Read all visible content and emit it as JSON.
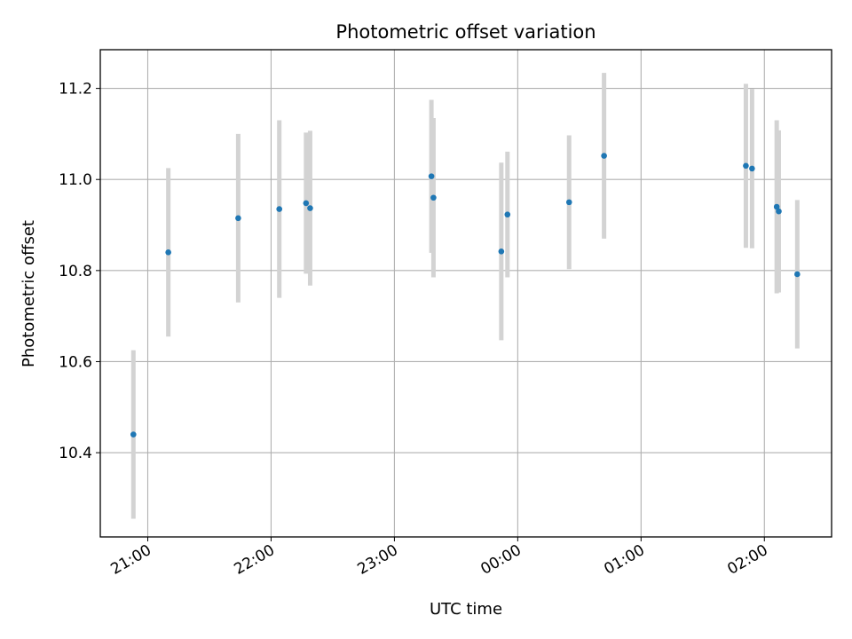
{
  "chart_data": {
    "type": "scatter",
    "title": "Photometric offset variation",
    "xlabel": "UTC time",
    "ylabel": "Photometric offset",
    "x_ticks": [
      "21:00",
      "22:00",
      "23:00",
      "00:00",
      "01:00",
      "02:00"
    ],
    "y_ticks": [
      "10.4",
      "10.6",
      "10.8",
      "11.0",
      "11.2"
    ],
    "xlim_hours": [
      20.615,
      26.545
    ],
    "ylim": [
      10.215,
      11.285
    ],
    "grid": true,
    "errorbar_color": "#d3d3d3",
    "marker_color": "#1f77b4",
    "points": [
      {
        "time": "20:53",
        "y": 10.44,
        "err": 0.185
      },
      {
        "time": "21:10",
        "y": 10.84,
        "err": 0.185
      },
      {
        "time": "21:44",
        "y": 10.915,
        "err": 0.185
      },
      {
        "time": "22:04",
        "y": 10.935,
        "err": 0.195
      },
      {
        "time": "22:17",
        "y": 10.948,
        "err": 0.155
      },
      {
        "time": "22:19",
        "y": 10.937,
        "err": 0.17
      },
      {
        "time": "23:18",
        "y": 11.007,
        "err": 0.168
      },
      {
        "time": "23:19",
        "y": 10.96,
        "err": 0.175
      },
      {
        "time": "23:52",
        "y": 10.842,
        "err": 0.195
      },
      {
        "time": "23:55",
        "y": 10.923,
        "err": 0.138
      },
      {
        "time": "00:25",
        "y": 10.95,
        "err": 0.147
      },
      {
        "time": "00:42",
        "y": 11.052,
        "err": 0.182
      },
      {
        "time": "01:51",
        "y": 11.03,
        "err": 0.18
      },
      {
        "time": "01:54",
        "y": 11.024,
        "err": 0.175
      },
      {
        "time": "02:06",
        "y": 10.94,
        "err": 0.19
      },
      {
        "time": "02:07",
        "y": 10.93,
        "err": 0.178
      },
      {
        "time": "02:16",
        "y": 10.792,
        "err": 0.163
      }
    ]
  }
}
